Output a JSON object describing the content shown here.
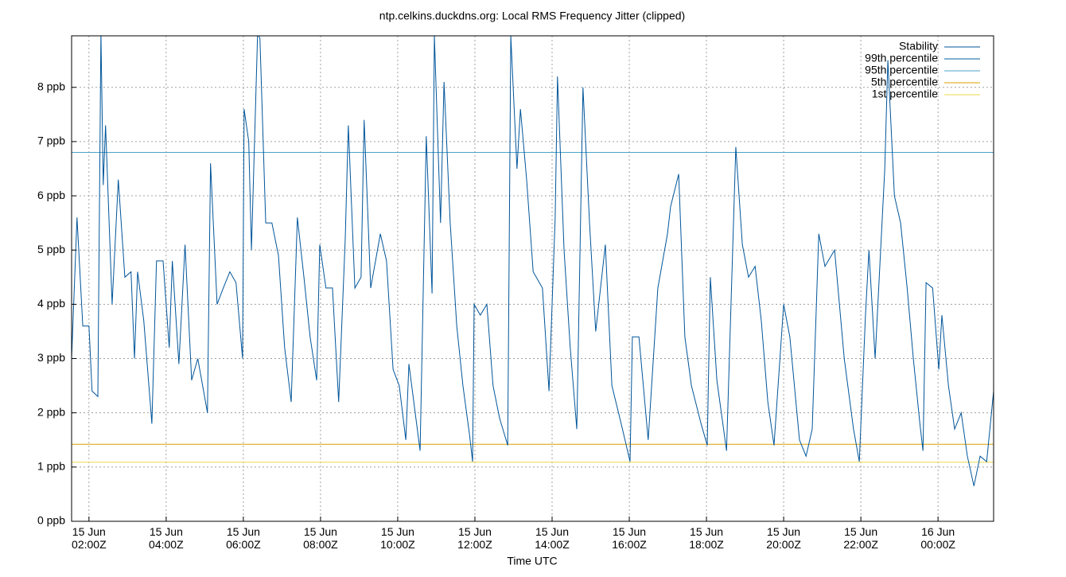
{
  "chart_data": {
    "type": "line",
    "title": "ntp.celkins.duckdns.org: Local RMS Frequency Jitter (clipped)",
    "xlabel": "Time UTC",
    "xlim": [
      1.55,
      25.44
    ],
    "ylim": [
      0,
      8.95
    ],
    "grid": true,
    "legend": "top-right",
    "xticks": [
      {
        "value": 2,
        "label": "15 Jun 02:00Z"
      },
      {
        "value": 4,
        "label": "15 Jun 04:00Z"
      },
      {
        "value": 6,
        "label": "15 Jun 06:00Z"
      },
      {
        "value": 8,
        "label": "15 Jun 08:00Z"
      },
      {
        "value": 10,
        "label": "15 Jun 10:00Z"
      },
      {
        "value": 12,
        "label": "15 Jun 12:00Z"
      },
      {
        "value": 14,
        "label": "15 Jun 14:00Z"
      },
      {
        "value": 16,
        "label": "15 Jun 16:00Z"
      },
      {
        "value": 18,
        "label": "15 Jun 18:00Z"
      },
      {
        "value": 20,
        "label": "15 Jun 20:00Z"
      },
      {
        "value": 22,
        "label": "15 Jun 22:00Z"
      },
      {
        "value": 24,
        "label": "16 Jun 00:00Z"
      }
    ],
    "yticks": [
      {
        "value": 0,
        "label": "0 ppb"
      },
      {
        "value": 1,
        "label": "1 ppb"
      },
      {
        "value": 2,
        "label": "2 ppb"
      },
      {
        "value": 3,
        "label": "3 ppb"
      },
      {
        "value": 4,
        "label": "4 ppb"
      },
      {
        "value": 5,
        "label": "5 ppb"
      },
      {
        "value": 6,
        "label": "6 ppb"
      },
      {
        "value": 7,
        "label": "7 ppb"
      },
      {
        "value": 8,
        "label": "8 ppb"
      }
    ],
    "x": [
      1.55,
      1.69,
      1.84,
      2.0,
      2.08,
      2.23,
      2.31,
      2.37,
      2.43,
      2.6,
      2.76,
      2.93,
      3.09,
      3.18,
      3.26,
      3.42,
      3.63,
      3.75,
      3.92,
      4.08,
      4.16,
      4.33,
      4.49,
      4.66,
      4.82,
      5.07,
      5.15,
      5.32,
      5.48,
      5.65,
      5.81,
      5.98,
      6.02,
      6.14,
      6.21,
      6.37,
      6.43,
      6.58,
      6.74,
      6.91,
      7.07,
      7.24,
      7.4,
      7.57,
      7.73,
      7.9,
      7.98,
      8.14,
      8.31,
      8.47,
      8.64,
      8.72,
      8.89,
      9.05,
      9.13,
      9.3,
      9.55,
      9.71,
      9.88,
      10.04,
      10.21,
      10.29,
      10.58,
      10.74,
      10.89,
      10.95,
      11.11,
      11.2,
      11.36,
      11.53,
      11.69,
      11.86,
      11.94,
      11.98,
      12.14,
      12.31,
      12.47,
      12.64,
      12.85,
      12.93,
      13.09,
      13.18,
      13.34,
      13.51,
      13.75,
      13.92,
      14.08,
      14.14,
      14.31,
      14.47,
      14.64,
      14.8,
      14.97,
      15.13,
      15.38,
      15.55,
      15.79,
      16.02,
      16.08,
      16.25,
      16.49,
      16.74,
      16.99,
      17.07,
      17.28,
      17.44,
      17.61,
      17.86,
      18.02,
      18.1,
      18.27,
      18.52,
      18.76,
      18.93,
      19.09,
      19.26,
      19.42,
      19.59,
      19.75,
      20.0,
      20.16,
      20.41,
      20.58,
      20.74,
      20.91,
      21.07,
      21.32,
      21.57,
      21.81,
      21.96,
      22.12,
      22.21,
      22.37,
      22.62,
      22.7,
      22.87,
      23.03,
      23.2,
      23.36,
      23.53,
      23.61,
      23.69,
      23.86,
      24.02,
      24.1,
      24.27,
      24.43,
      24.6,
      24.76,
      24.93,
      25.09,
      25.26,
      25.44
    ],
    "series": [
      {
        "name": "Stability",
        "color": "#00559a",
        "values": [
          3.0,
          5.6,
          3.6,
          3.6,
          2.4,
          2.3,
          9.0,
          6.2,
          7.3,
          4.0,
          6.3,
          4.5,
          4.6,
          3.0,
          4.6,
          3.7,
          1.8,
          4.8,
          4.8,
          3.2,
          4.8,
          2.9,
          5.1,
          2.6,
          3.0,
          2.0,
          6.6,
          4.0,
          4.3,
          4.6,
          4.4,
          3.0,
          7.6,
          7.0,
          5.0,
          9.0,
          8.9,
          5.5,
          5.5,
          4.9,
          3.2,
          2.2,
          5.6,
          4.5,
          3.4,
          2.6,
          5.1,
          4.3,
          4.3,
          2.2,
          5.2,
          7.3,
          4.3,
          4.5,
          7.4,
          4.3,
          5.3,
          4.8,
          2.8,
          2.5,
          1.5,
          2.9,
          1.3,
          7.1,
          4.2,
          8.95,
          5.5,
          8.1,
          5.5,
          3.6,
          2.5,
          1.6,
          1.1,
          4.0,
          3.8,
          4.0,
          2.5,
          1.9,
          1.4,
          8.95,
          6.5,
          7.6,
          6.3,
          4.6,
          4.3,
          2.4,
          5.6,
          8.2,
          5.0,
          3.2,
          1.7,
          8.0,
          5.5,
          3.5,
          5.1,
          2.5,
          1.8,
          1.1,
          3.4,
          3.4,
          1.5,
          4.3,
          5.3,
          5.8,
          6.4,
          3.4,
          2.5,
          1.8,
          1.4,
          4.5,
          2.6,
          1.3,
          6.9,
          5.1,
          4.5,
          4.7,
          3.7,
          2.2,
          1.4,
          4.0,
          3.4,
          1.5,
          1.2,
          1.7,
          5.3,
          4.7,
          5.0,
          3.0,
          1.7,
          1.1,
          3.8,
          5.0,
          3.0,
          6.5,
          8.5,
          6.0,
          5.5,
          4.3,
          3.0,
          1.8,
          1.3,
          4.4,
          4.3,
          2.8,
          3.8,
          2.5,
          1.7,
          2.0,
          1.2,
          0.65,
          1.2,
          1.1,
          2.4
        ]
      }
    ],
    "hlines": [
      {
        "name": "99th percentile",
        "color": "#00609f",
        "value": null
      },
      {
        "name": "95th percentile",
        "color": "#4ba3c8",
        "value": 6.8
      },
      {
        "name": "5th percentile",
        "color": "#d9a100",
        "value": 1.42
      },
      {
        "name": "1st percentile",
        "color": "#ecd84a",
        "value": 1.09
      }
    ]
  }
}
